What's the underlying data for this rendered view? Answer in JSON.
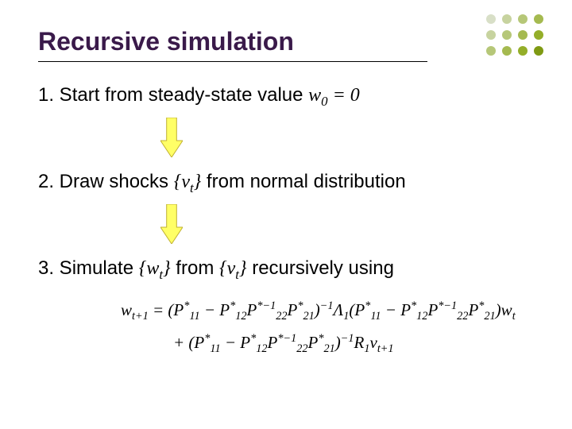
{
  "title": "Recursive simulation",
  "title_fontsize": 32,
  "title_color": "#3a1a4a",
  "rule_color": "#000000",
  "body_fontsize": 24,
  "steps": {
    "s1_prefix": "1. Start from steady-state value ",
    "s1_var": "w",
    "s1_varsub": "0",
    "s1_suffix": " = 0",
    "s2_prefix": "2. Draw shocks ",
    "s2_openbrace": "{",
    "s2_var": "v",
    "s2_varsub": "t",
    "s2_closebrace": "}",
    "s2_suffix": " from normal distribution",
    "s3_prefix": "3. Simulate ",
    "s3_open1": "{",
    "s3_var1": "w",
    "s3_varsub1": "t",
    "s3_close1": "}",
    "s3_mid": " from ",
    "s3_open2": "{",
    "s3_var2": "v",
    "s3_varsub2": "t",
    "s3_close2": "}",
    "s3_suffix": " recursively using"
  },
  "formula": {
    "fontsize": 21,
    "line1a": "w",
    "line1a_sub": "t+1",
    "eq": " = (",
    "P11a": "P",
    "P11a_sup": "*",
    "P11a_sub": "11",
    "minus1": " − ",
    "P12a": "P",
    "P12a_sup": "*",
    "P12a_sub": "12",
    "P22inv": "P",
    "P22inv_sup": "*−1",
    "P22inv_sub": "22",
    "P21a": "P",
    "P21a_sup": "*",
    "P21a_sub": "21",
    "close1": ")",
    "exp1": "−1",
    "Lambda": "Λ",
    "Lambda_sub": "1",
    "open2": "(",
    "P11b": "P",
    "P11b_sup": "*",
    "P11b_sub": "11",
    "minus2": " − ",
    "P12b": "P",
    "P12b_sup": "*",
    "P12b_sub": "12",
    "P22invb": "P",
    "P22invb_sup": "*−1",
    "P22invb_sub": "22",
    "P21b": "P",
    "P21b_sup": "*",
    "P21b_sub": "21",
    "close2": ")",
    "wtvar": "w",
    "wt_sub": "t",
    "plus": "+ (",
    "P11c": "P",
    "P11c_sup": "*",
    "P11c_sub": "11",
    "minus3": " − ",
    "P12c": "P",
    "P12c_sup": "*",
    "P12c_sub": "12",
    "P22invc": "P",
    "P22invc_sup": "*−1",
    "P22invc_sub": "22",
    "P21c": "P",
    "P21c_sup": "*",
    "P21c_sub": "21",
    "close3": ")",
    "exp3": "−1",
    "R1": "R",
    "R1_sub": "1",
    "vvar": "v",
    "v_sub": "t+1"
  },
  "arrow": {
    "shaft_fill": "#ffff66",
    "shaft_stroke": "#c0b030",
    "width": 28,
    "height": 50
  },
  "dot_grid": {
    "rows": 3,
    "cols": 4,
    "r": 6,
    "gap": 20,
    "colors_row1": [
      "#d8dfc7",
      "#c7d39f",
      "#b6c778",
      "#a5ba50"
    ],
    "colors_row2": [
      "#c7d39f",
      "#b6c778",
      "#a5ba50",
      "#94ae29"
    ],
    "colors_row3": [
      "#b6c778",
      "#a5ba50",
      "#94ae29",
      "#7f9a13"
    ]
  }
}
